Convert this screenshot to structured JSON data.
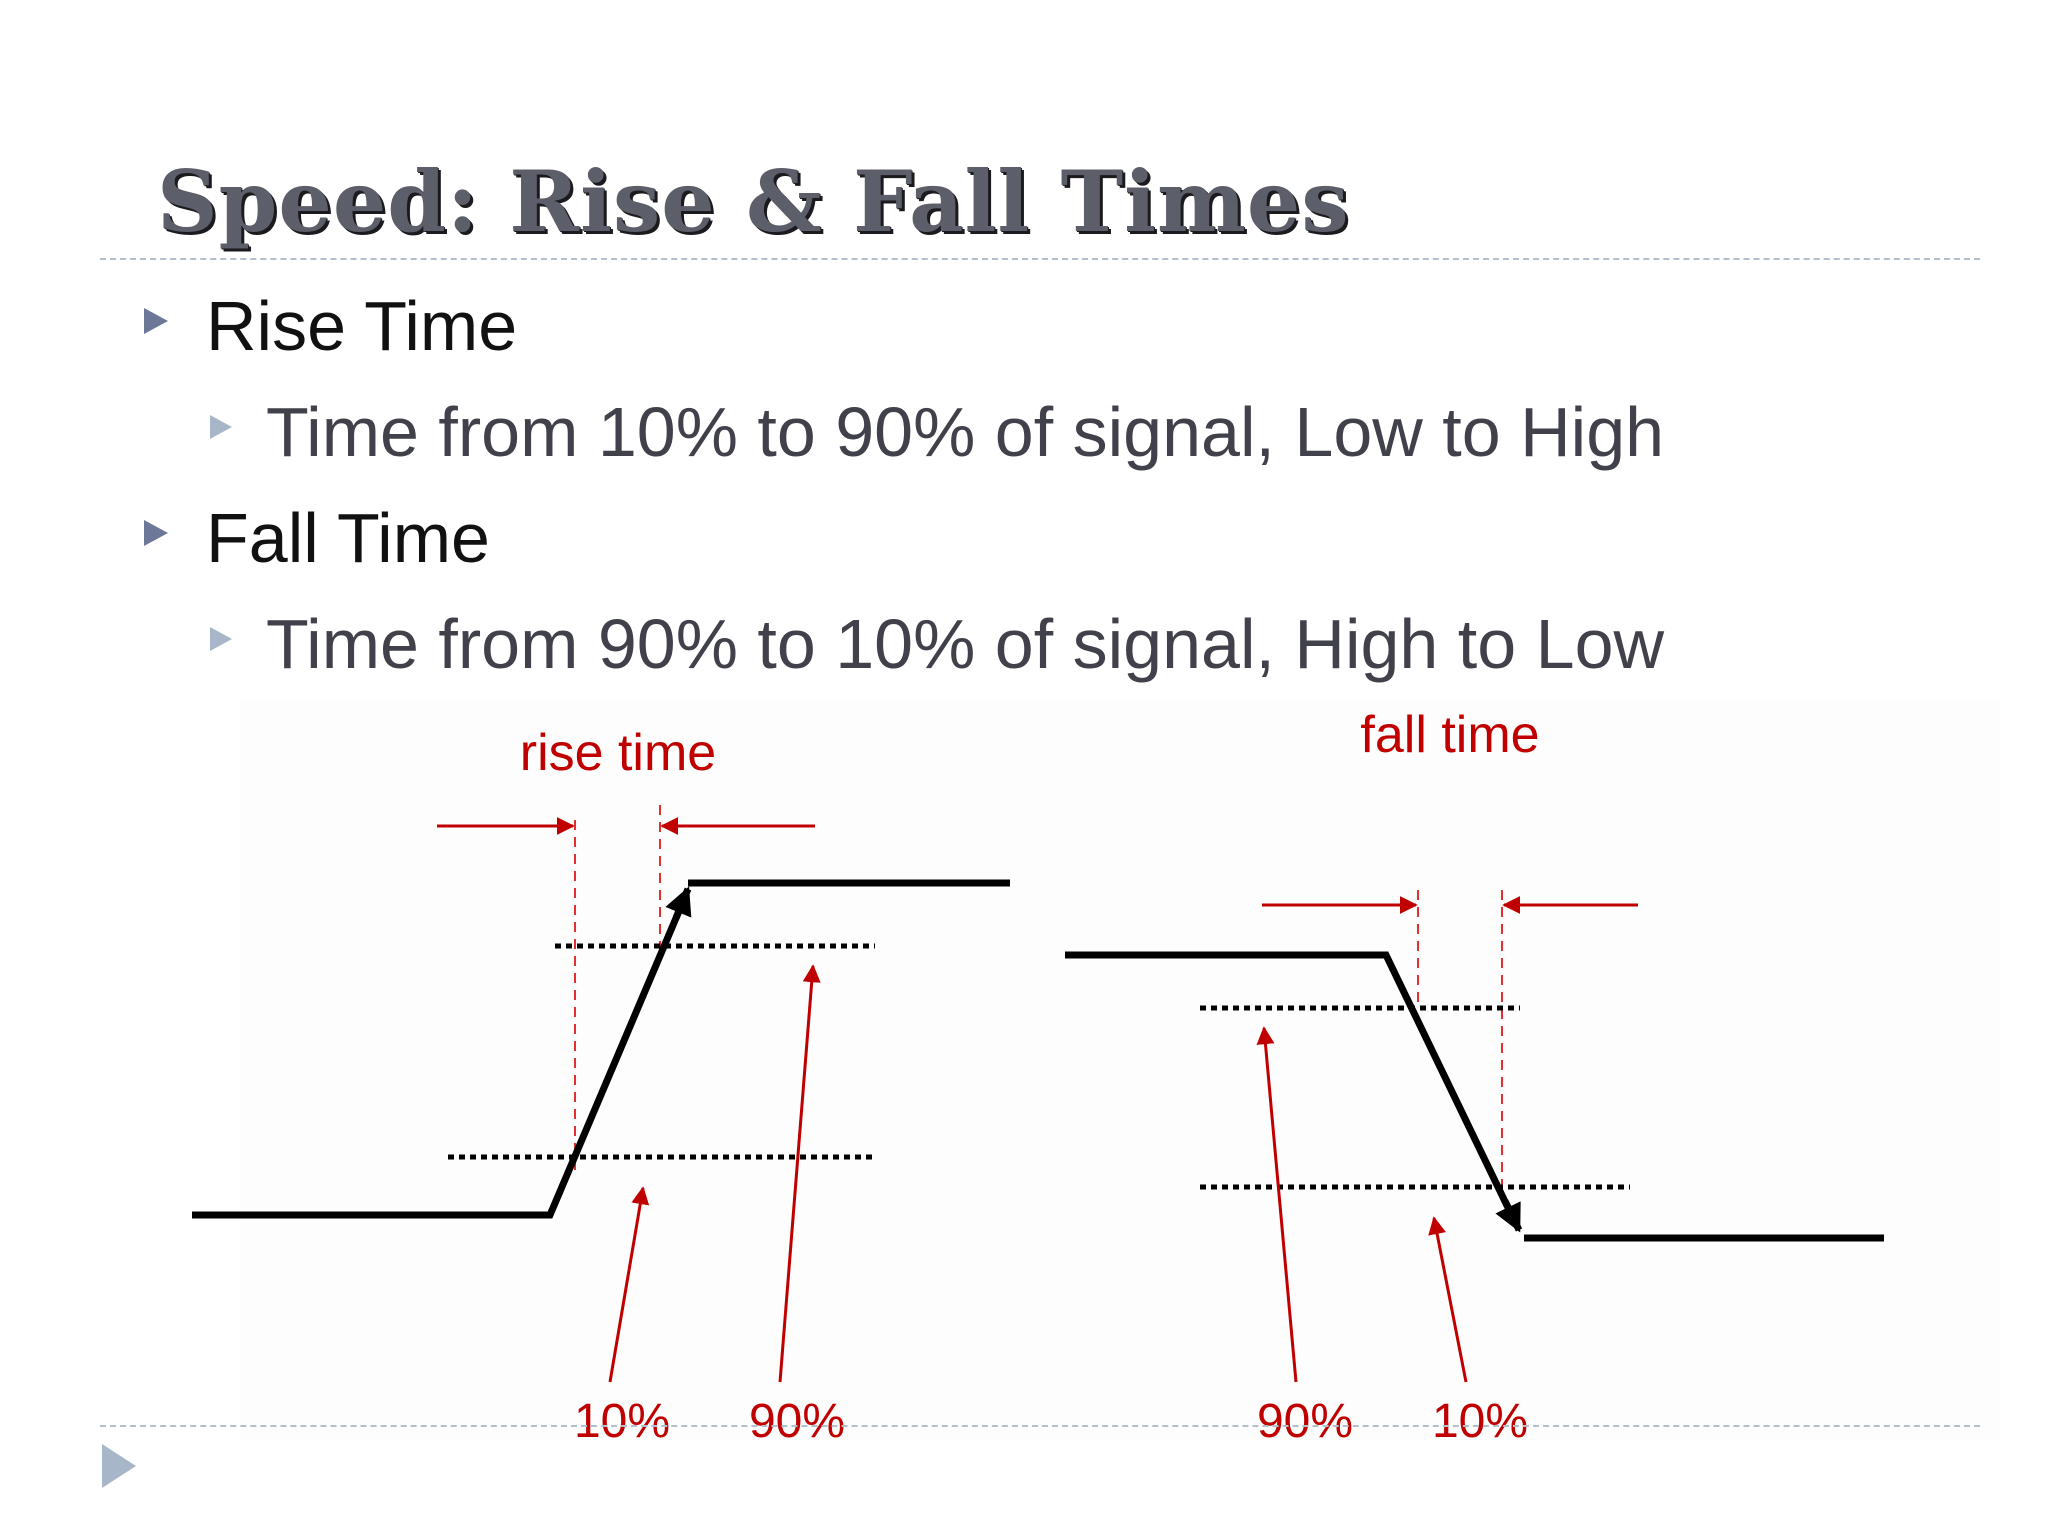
{
  "slide": {
    "title": "Speed: Rise & Fall Times",
    "bullets": [
      {
        "label": "Rise Time",
        "sub": "Time from 10% to 90% of signal, Low to High"
      },
      {
        "label": "Fall Time",
        "sub": "Time from 90% to 10% of signal, High to Low"
      }
    ]
  },
  "diagram": {
    "rise": {
      "heading": "rise time",
      "low_label": "10%",
      "high_label": "90%"
    },
    "fall": {
      "heading": "fall time",
      "high_label": "90%",
      "low_label": "10%"
    }
  },
  "colors": {
    "accent_red": "#c00000",
    "signal": "#000000",
    "title_text": "#5c5e6a",
    "bullet_marker": "#6d7898",
    "sub_bullet_marker": "#a8b6c9"
  },
  "icons": {
    "bullet": "triangle-right",
    "footer": "triangle-right"
  }
}
